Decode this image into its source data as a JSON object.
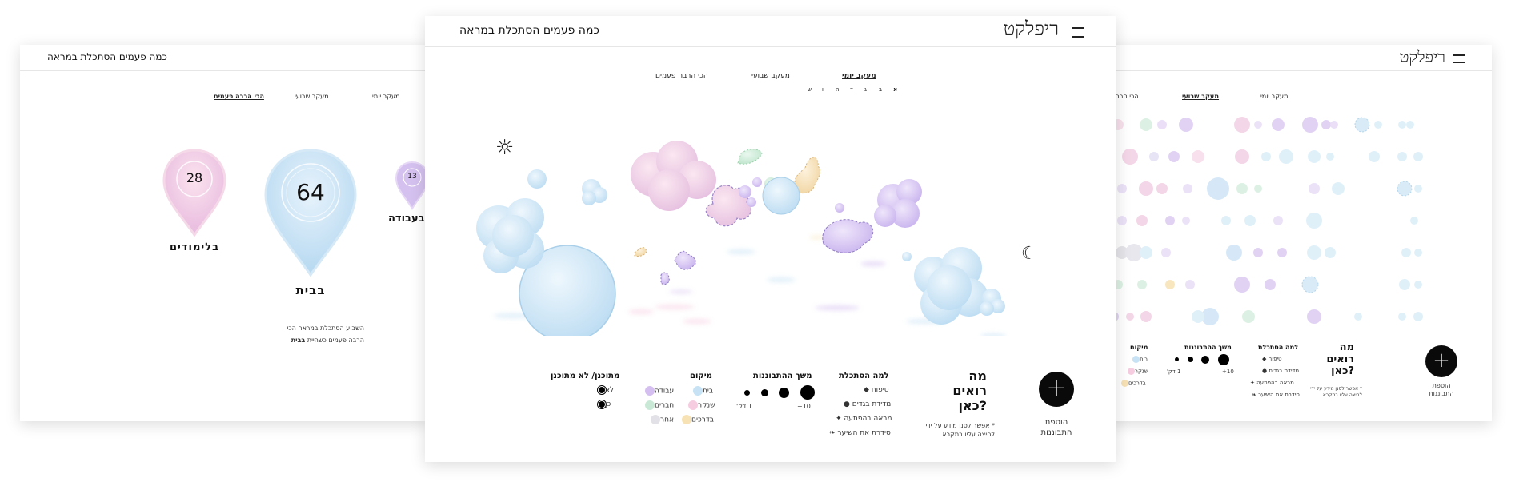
{
  "app": {
    "logo": "ריפלקט",
    "question": "כמה פעמים הסתכלת במראה"
  },
  "tabs": {
    "daily": "מעקב יומי",
    "weekly": "מעקב שבועי",
    "most": "הכי הרבה פעמים"
  },
  "days": [
    "א",
    "ב",
    "ג",
    "ד",
    "ה",
    "ו",
    "ש"
  ],
  "legend": {
    "why": {
      "title": "למה הסתכלת",
      "items": [
        "טיפוח",
        "מדידת בגדים",
        "מראה בהפתעה",
        "סידרת את השיער"
      ]
    },
    "duration": {
      "title": "משך ההתבוננות",
      "min": "1 דק'",
      "max": "10+"
    },
    "location": {
      "title": "מיקום",
      "items": [
        "בית",
        "שנקר",
        "בדרכים",
        "עבודה",
        "חברים",
        "אחר"
      ]
    },
    "planned": {
      "title": "מתוכנן/ לא מתוכנן",
      "no": "לא",
      "yes": "כן"
    }
  },
  "what": {
    "line1": "מה",
    "line2": "רואים",
    "line3": "כאן?",
    "note1": "* אפשר לסנן מידע על ידי",
    "note2": "לחיצה עליו במקרא"
  },
  "add": {
    "symbol": "+",
    "line1": "הוספת",
    "line2": "התבוננות"
  },
  "pins": [
    {
      "value": "64",
      "label": "בבית",
      "color": "#c9e3f5"
    },
    {
      "value": "28",
      "label": "בלימודים",
      "color": "#f4c9df"
    },
    {
      "value": "13",
      "label": "בעבודה",
      "color": "#d7c4ef"
    }
  ],
  "summary": {
    "line1": "השבוע הסתכלת במראה הכי",
    "line2a": "הרבה פעמים כשהיית ",
    "line2b": "בבית"
  },
  "colors": {
    "home": "#c6e2f4",
    "shenkar": "#f6cde0",
    "road": "#f7e2b5",
    "work": "#d4bff0",
    "friends": "#c9e9d6",
    "other": "#e1e1e7"
  }
}
